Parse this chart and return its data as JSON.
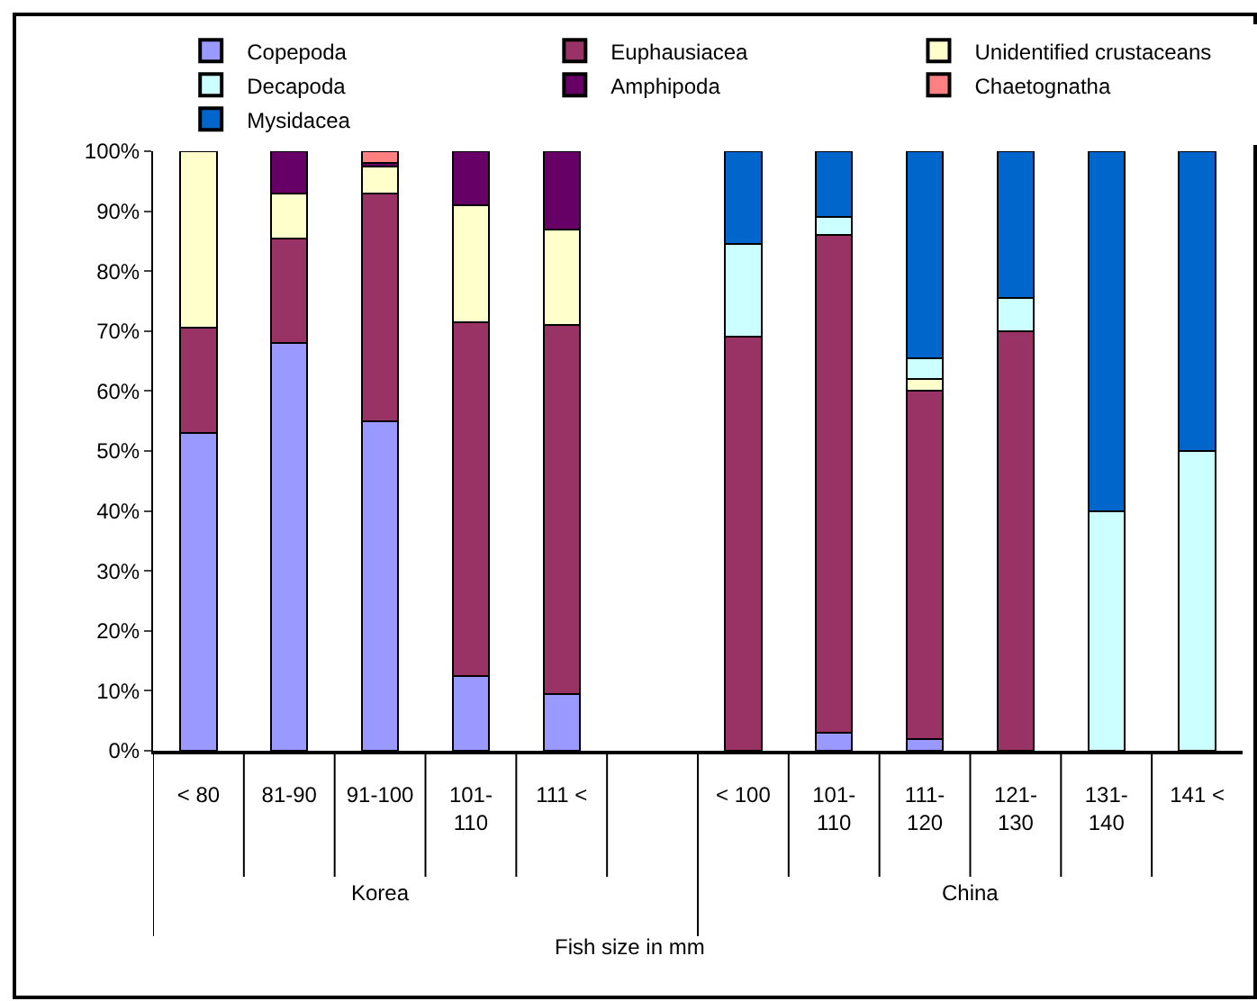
{
  "chart_data": {
    "type": "bar",
    "stacked": true,
    "xlabel": "Fish size in mm",
    "categories": [
      "< 80",
      "81-90",
      "91-100",
      "101-\n110",
      "111 <",
      null,
      "< 100",
      "101-\n110",
      "111-\n120",
      "121-\n130",
      "131-\n140",
      "141 <"
    ],
    "series": [
      {
        "name": "Copepoda",
        "color": "#9999ff",
        "values": [
          53,
          68,
          55,
          12.5,
          9.5,
          null,
          null,
          3,
          2,
          null,
          null,
          null
        ]
      },
      {
        "name": "Euphausiacea",
        "color": "#993366",
        "values": [
          17.5,
          17.5,
          38,
          59,
          61.5,
          null,
          69,
          83,
          58,
          70,
          null,
          null
        ]
      },
      {
        "name": "Unidentified crustaceans",
        "color": "#ffffcc",
        "values": [
          29.5,
          7.5,
          4.5,
          19.5,
          16,
          null,
          null,
          null,
          2,
          null,
          null,
          null
        ]
      },
      {
        "name": "Decapoda",
        "color": "#ccffff",
        "values": [
          null,
          null,
          null,
          null,
          null,
          null,
          15.5,
          3,
          3.5,
          5.5,
          40,
          50
        ]
      },
      {
        "name": "Amphipoda",
        "color": "#660066",
        "values": [
          null,
          7,
          0.5,
          9,
          13,
          null,
          null,
          null,
          null,
          null,
          null,
          null
        ]
      },
      {
        "name": "Chaetognatha",
        "color": "#ff8080",
        "values": [
          null,
          null,
          2,
          null,
          null,
          null,
          null,
          null,
          null,
          null,
          null,
          null
        ]
      },
      {
        "name": "Mysidacea",
        "color": "#0066cc",
        "values": [
          null,
          null,
          null,
          null,
          null,
          null,
          15.5,
          11,
          34.5,
          24.5,
          60,
          50
        ]
      }
    ],
    "ylim": [
      0,
      100
    ],
    "yticks": [
      {
        "value": 0,
        "label": "0%"
      },
      {
        "value": 10,
        "label": "10%"
      },
      {
        "value": 20,
        "label": "20%"
      },
      {
        "value": 30,
        "label": "30%"
      },
      {
        "value": 40,
        "label": "40%"
      },
      {
        "value": 50,
        "label": "50%"
      },
      {
        "value": 60,
        "label": "60%"
      },
      {
        "value": 70,
        "label": "70%"
      },
      {
        "value": 80,
        "label": "80%"
      },
      {
        "value": 90,
        "label": "90%"
      },
      {
        "value": 100,
        "label": "100%"
      }
    ],
    "annotations": [
      "Korea",
      "China"
    ],
    "legend": "top"
  }
}
